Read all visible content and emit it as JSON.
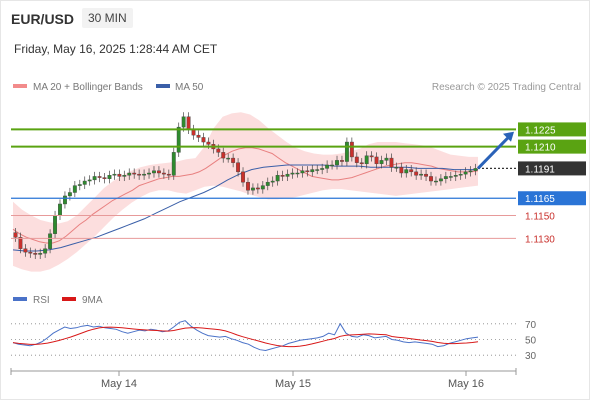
{
  "header": {
    "symbol": "EUR/USD",
    "timeframe": "30 MIN",
    "timestamp": "Friday, May 16, 2025 1:28:44 AM CET",
    "credit": "Research © 2025 Trading Central"
  },
  "legend": {
    "bb_label": "MA 20 + Bollinger Bands",
    "ma50_label": "MA 50",
    "rsi_label": "RSI",
    "ma9_label": "9MA"
  },
  "colors": {
    "candle_up": "#2e8b2e",
    "candle_down": "#c9302c",
    "bollinger_fill": "#fbd3d3",
    "ma20": "#e88080",
    "ma50": "#3a5fa8",
    "resistance": "#5aa312",
    "support": "#2a74d6",
    "target_line": "#e79a9a",
    "rsi": "#4a72c8",
    "rsi_ma": "#d81818",
    "current_price": "#333333"
  },
  "chart_data": {
    "type": "line",
    "price_ylim": [
      1.1085,
      1.1255
    ],
    "x_ticks": [
      "May 14",
      "May 16",
      "May 15"
    ],
    "price_levels": [
      {
        "label": "1.1225",
        "value": 1.1225,
        "kind": "resistance"
      },
      {
        "label": "1.1210",
        "value": 1.121,
        "kind": "resistance"
      },
      {
        "label": "1.1191",
        "value": 1.1191,
        "kind": "current"
      },
      {
        "label": "1.1165",
        "value": 1.1165,
        "kind": "pivot"
      },
      {
        "label": "1.1150",
        "value": 1.115,
        "kind": "target"
      },
      {
        "label": "1.1130",
        "value": 1.113,
        "kind": "target"
      }
    ],
    "close_series": [
      1.1131,
      1.1121,
      1.1118,
      1.1117,
      1.1116,
      1.1117,
      1.1121,
      1.1134,
      1.115,
      1.116,
      1.1167,
      1.117,
      1.1176,
      1.1177,
      1.118,
      1.1181,
      1.1184,
      1.1183,
      1.1182,
      1.1185,
      1.1186,
      1.1184,
      1.1185,
      1.1187,
      1.1186,
      1.1185,
      1.1186,
      1.1187,
      1.1189,
      1.1187,
      1.1186,
      1.1185,
      1.1205,
      1.1227,
      1.1236,
      1.1225,
      1.122,
      1.1218,
      1.1214,
      1.1212,
      1.1208,
      1.1205,
      1.12,
      1.12,
      1.1196,
      1.1188,
      1.1179,
      1.1172,
      1.1174,
      1.1173,
      1.1176,
      1.1179,
      1.118,
      1.1185,
      1.1184,
      1.1186,
      1.1187,
      1.1187,
      1.1189,
      1.1188,
      1.119,
      1.119,
      1.1191,
      1.1194,
      1.1194,
      1.1198,
      1.1197,
      1.1214,
      1.1201,
      1.1196,
      1.1195,
      1.1202,
      1.1201,
      1.1195,
      1.1198,
      1.12,
      1.1192,
      1.1192,
      1.1187,
      1.119,
      1.1188,
      1.1185,
      1.1186,
      1.1184,
      1.118,
      1.118,
      1.1182,
      1.1184,
      1.1184,
      1.1185,
      1.1186,
      1.1188,
      1.1189,
      1.1191
    ],
    "ma20_series": [
      1.1138,
      1.1134,
      1.1131,
      1.1129,
      1.1127,
      1.1126,
      1.1126,
      1.1128,
      1.1132,
      1.1137,
      1.1142,
      1.1146,
      1.1151,
      1.1155,
      1.1159,
      1.1163,
      1.1166,
      1.1169,
      1.1172,
      1.1176,
      1.1178,
      1.118,
      1.1182,
      1.1183,
      1.1184,
      1.1184,
      1.1185,
      1.1186,
      1.1188,
      1.1191,
      1.1195,
      1.1199,
      1.1203,
      1.1206,
      1.1208,
      1.1209,
      1.1209,
      1.1208,
      1.1206,
      1.1204,
      1.12,
      1.1196,
      1.1193,
      1.119,
      1.1187,
      1.1184,
      1.1183,
      1.1182,
      1.1181,
      1.1181,
      1.1182,
      1.1183,
      1.1185,
      1.1187,
      1.1189,
      1.1191,
      1.1193,
      1.1194,
      1.1195,
      1.1196,
      1.1196,
      1.1195,
      1.1194,
      1.1193,
      1.1191,
      1.119,
      1.1189,
      1.1188,
      1.1188,
      1.1188,
      1.1189
    ],
    "bb_upper": [
      1.1162,
      1.1155,
      1.115,
      1.1146,
      1.1144,
      1.1143,
      1.1145,
      1.115,
      1.1158,
      1.1166,
      1.1174,
      1.118,
      1.1185,
      1.1189,
      1.1192,
      1.1194,
      1.1195,
      1.1196,
      1.1197,
      1.1199,
      1.12,
      1.121,
      1.1226,
      1.1236,
      1.1239,
      1.124,
      1.1238,
      1.1233,
      1.1226,
      1.122,
      1.1214,
      1.1209,
      1.1206,
      1.1204,
      1.1203,
      1.1203,
      1.1204,
      1.1206,
      1.1208,
      1.1212,
      1.1214,
      1.1214,
      1.1214,
      1.1213,
      1.1212,
      1.1211,
      1.1209,
      1.1206,
      1.1203,
      1.1202,
      1.1201,
      1.1201
    ],
    "bb_lower": [
      1.1106,
      1.1103,
      1.1101,
      1.1101,
      1.1103,
      1.1107,
      1.1112,
      1.1118,
      1.1125,
      1.1132,
      1.114,
      1.1148,
      1.1155,
      1.1161,
      1.1166,
      1.117,
      1.1172,
      1.1172,
      1.117,
      1.1169,
      1.1172,
      1.1175,
      1.1176,
      1.1175,
      1.1173,
      1.1171,
      1.1168,
      1.1166,
      1.1164,
      1.1164,
      1.1165,
      1.1166,
      1.1168,
      1.117,
      1.1172,
      1.1173,
      1.1173,
      1.1172,
      1.1171,
      1.117,
      1.1169,
      1.1168,
      1.1167,
      1.1168,
      1.1169,
      1.117,
      1.1171,
      1.1172,
      1.1173,
      1.1174,
      1.1175,
      1.1176
    ],
    "ma50_series": [
      1.112,
      1.1119,
      1.1119,
      1.112,
      1.1122,
      1.1125,
      1.1128,
      1.1131,
      1.1135,
      1.1139,
      1.1143,
      1.1147,
      1.1152,
      1.1157,
      1.1162,
      1.1166,
      1.117,
      1.1175,
      1.1181,
      1.1186,
      1.119,
      1.1192,
      1.1193,
      1.1194,
      1.1194,
      1.1194,
      1.1194,
      1.1193,
      1.1193,
      1.1193,
      1.1192,
      1.1192,
      1.1192,
      1.1192,
      1.1191,
      1.1191,
      1.1191,
      1.119,
      1.119,
      1.119
    ],
    "rsi_ylim": [
      20,
      80
    ],
    "rsi_levels": [
      "70",
      "50",
      "30"
    ],
    "rsi_series": [
      46,
      44,
      43,
      42,
      44,
      47,
      52,
      58,
      62,
      66,
      64,
      65,
      67,
      68,
      66,
      67,
      65,
      64,
      63,
      60,
      58,
      60,
      62,
      61,
      63,
      62,
      60,
      61,
      66,
      72,
      74,
      67,
      62,
      58,
      55,
      54,
      53,
      54,
      51,
      49,
      46,
      44,
      40,
      37,
      36,
      38,
      40,
      42,
      45,
      47,
      49,
      50,
      51,
      52,
      54,
      58,
      56,
      70,
      58,
      54,
      53,
      56,
      55,
      52,
      53,
      54,
      50,
      49,
      47,
      46,
      47,
      46,
      45,
      44,
      41,
      42,
      45,
      47,
      49,
      51,
      52,
      53
    ]
  }
}
